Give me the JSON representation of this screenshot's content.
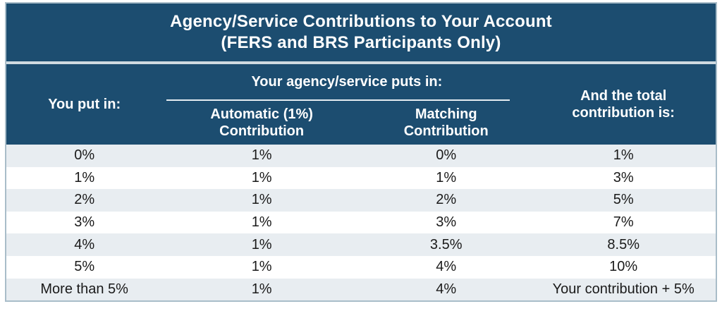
{
  "title": {
    "line1": "Agency/Service Contributions to Your Account",
    "line2": "(FERS and BRS Participants Only)"
  },
  "header": {
    "you_put_in": "You put in:",
    "agency_group_label": "Your agency/service puts in:",
    "automatic_label": "Automatic (1%)\nContribution",
    "matching_label": "Matching\nContribution",
    "total_label": "And the total\ncontribution is:"
  },
  "rows": [
    {
      "you": "0%",
      "automatic": "1%",
      "matching": "0%",
      "total": "1%"
    },
    {
      "you": "1%",
      "automatic": "1%",
      "matching": "1%",
      "total": "3%"
    },
    {
      "you": "2%",
      "automatic": "1%",
      "matching": "2%",
      "total": "5%"
    },
    {
      "you": "3%",
      "automatic": "1%",
      "matching": "3%",
      "total": "7%"
    },
    {
      "you": "4%",
      "automatic": "1%",
      "matching": "3.5%",
      "total": "8.5%"
    },
    {
      "you": "5%",
      "automatic": "1%",
      "matching": "4%",
      "total": "10%"
    },
    {
      "you": "More than 5%",
      "automatic": "1%",
      "matching": "4%",
      "total": "Your contribution + 5%"
    }
  ],
  "colors": {
    "navy": "#1c4d70",
    "row_alt": "#e8edf1",
    "row_white": "#ffffff",
    "outer_border": "#a9bdc9",
    "title_separator": "#cfdae1",
    "header_underline": "#e4ecf1",
    "data_text": "#1a1a1a",
    "header_text": "#ffffff"
  }
}
